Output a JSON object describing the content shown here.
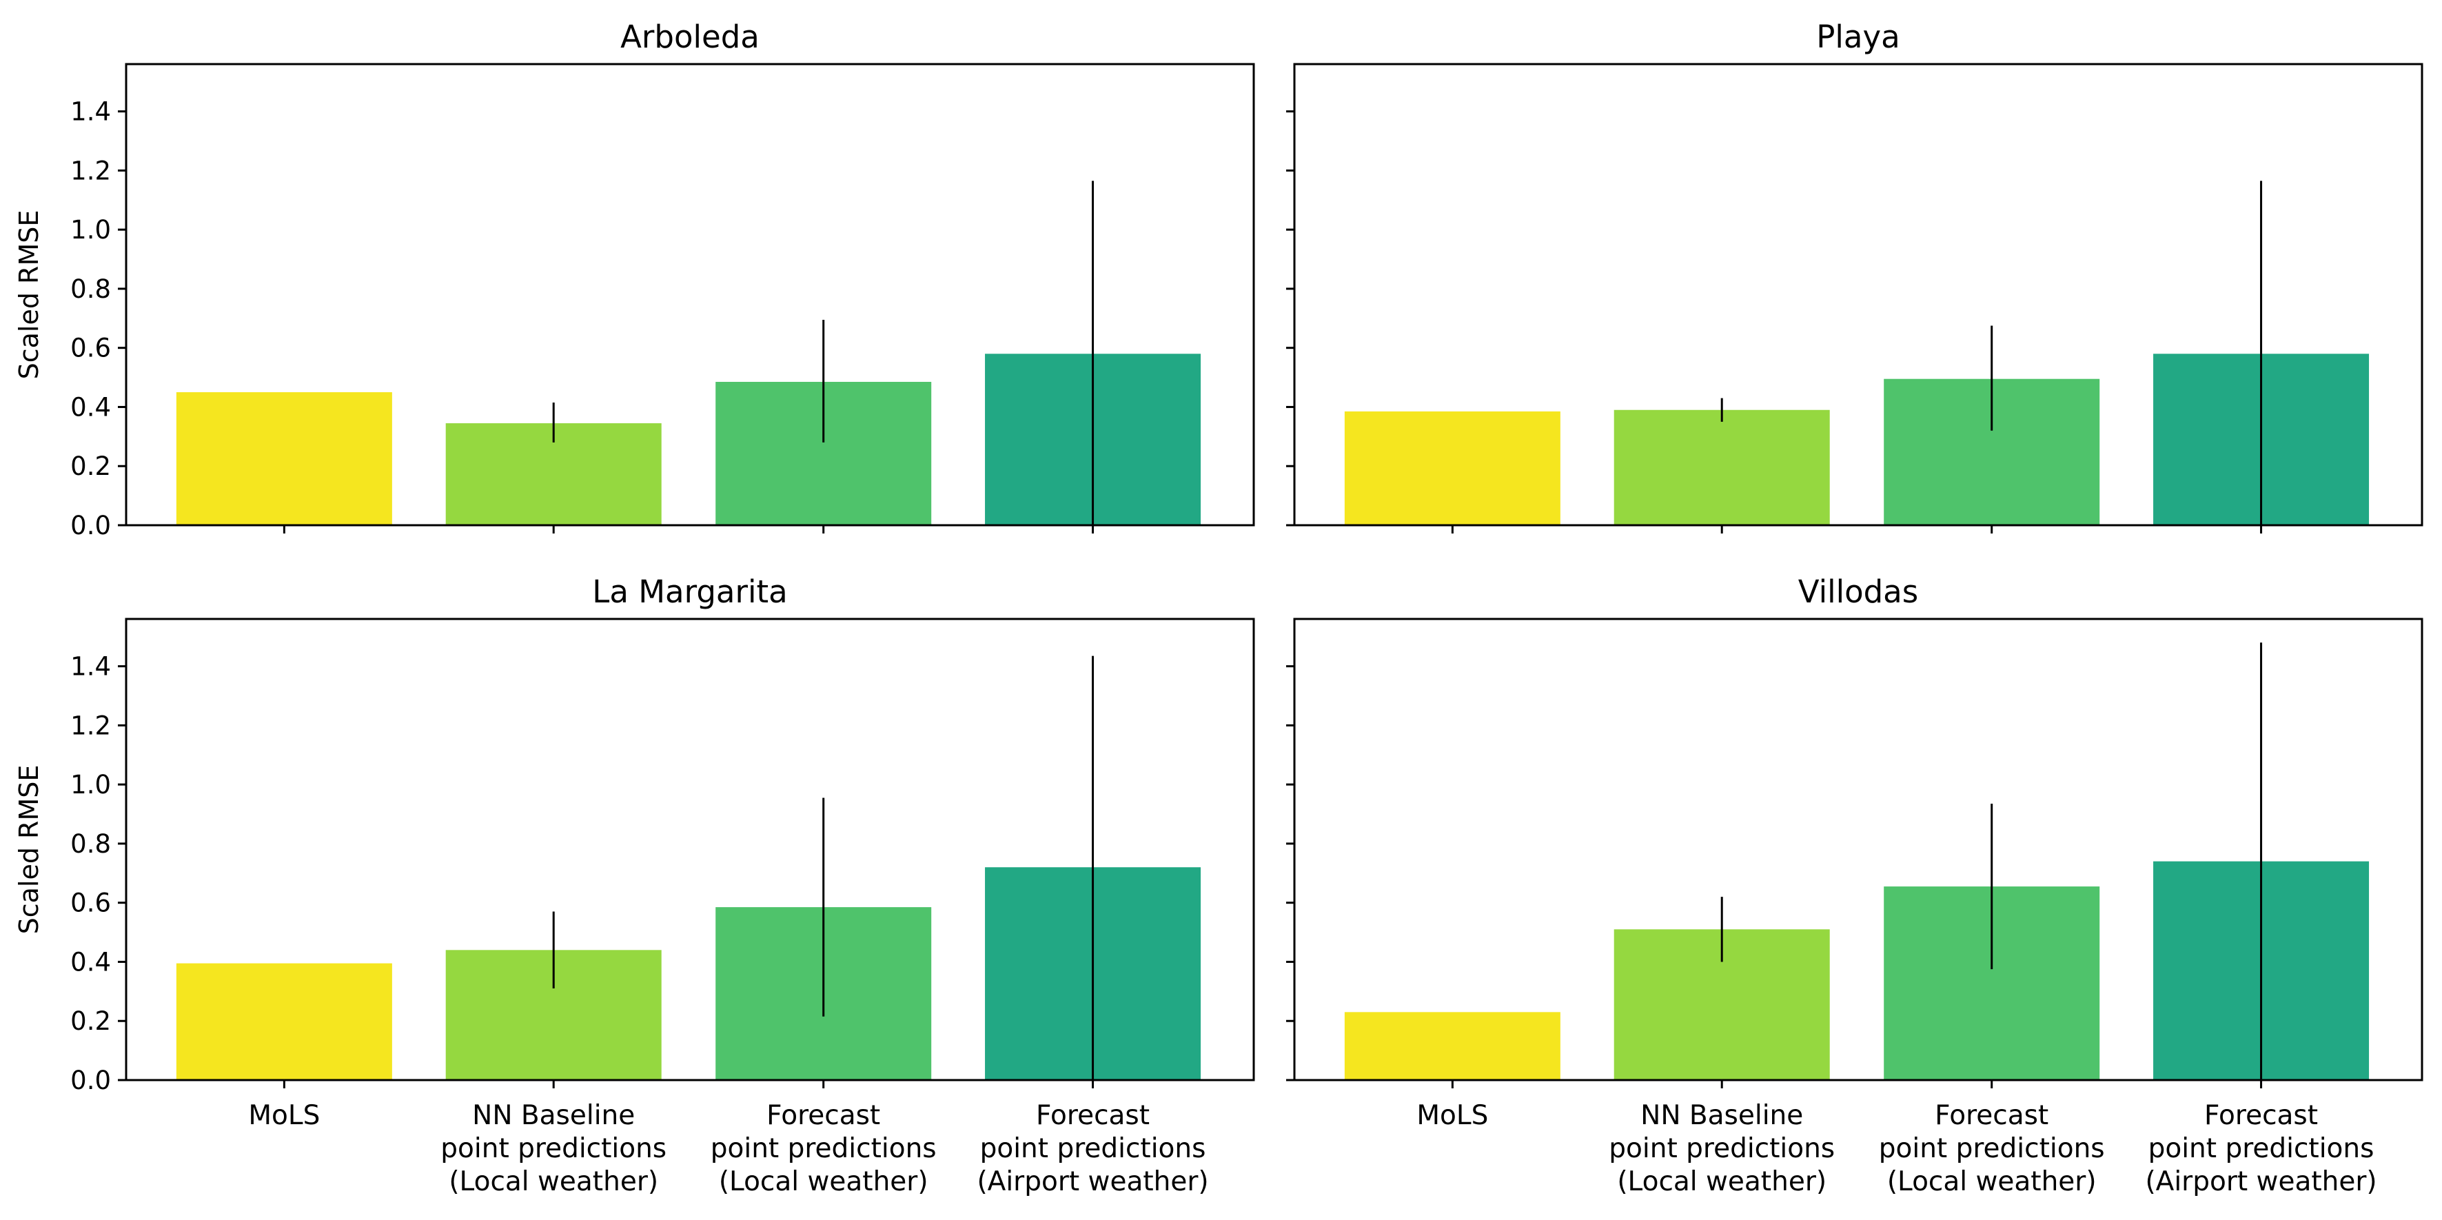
{
  "chart_data": [
    {
      "type": "bar",
      "title": "Arboleda",
      "ylabel": "Scaled RMSE",
      "ylim": [
        0,
        1.56
      ],
      "yticks": [
        "0.0",
        "0.2",
        "0.4",
        "0.6",
        "0.8",
        "1.0",
        "1.2",
        "1.4"
      ],
      "categories": [
        "MoLS",
        "NN Baseline\npoint predictions\n(Local weather)",
        "Forecast\npoint predictions\n(Local weather)",
        "Forecast\npoint predictions\n(Airport weather)"
      ],
      "values": [
        0.45,
        0.345,
        0.485,
        0.58
      ],
      "error_low": [
        null,
        0.28,
        0.28,
        0.0
      ],
      "error_high": [
        null,
        0.415,
        0.695,
        1.165
      ],
      "colors": [
        "#f5e61f",
        "#95d840",
        "#4fc36b",
        "#22a884"
      ],
      "show_xticklabels": false
    },
    {
      "type": "bar",
      "title": "Playa",
      "ylabel": "",
      "ylim": [
        0,
        1.56
      ],
      "yticks": [],
      "categories": [
        "MoLS",
        "NN Baseline\npoint predictions\n(Local weather)",
        "Forecast\npoint predictions\n(Local weather)",
        "Forecast\npoint predictions\n(Airport weather)"
      ],
      "values": [
        0.385,
        0.39,
        0.495,
        0.58
      ],
      "error_low": [
        null,
        0.35,
        0.32,
        0.0
      ],
      "error_high": [
        null,
        0.43,
        0.675,
        1.165
      ],
      "colors": [
        "#f5e61f",
        "#95d840",
        "#4fc36b",
        "#22a884"
      ],
      "show_xticklabels": false
    },
    {
      "type": "bar",
      "title": "La Margarita",
      "ylabel": "Scaled RMSE",
      "ylim": [
        0,
        1.56
      ],
      "yticks": [
        "0.0",
        "0.2",
        "0.4",
        "0.6",
        "0.8",
        "1.0",
        "1.2",
        "1.4"
      ],
      "categories": [
        "MoLS",
        "NN Baseline\npoint predictions\n(Local weather)",
        "Forecast\npoint predictions\n(Local weather)",
        "Forecast\npoint predictions\n(Airport weather)"
      ],
      "values": [
        0.395,
        0.44,
        0.585,
        0.72
      ],
      "error_low": [
        null,
        0.31,
        0.215,
        0.0
      ],
      "error_high": [
        null,
        0.57,
        0.955,
        1.435
      ],
      "colors": [
        "#f5e61f",
        "#95d840",
        "#4fc36b",
        "#22a884"
      ],
      "show_xticklabels": true
    },
    {
      "type": "bar",
      "title": "Villodas",
      "ylabel": "",
      "ylim": [
        0,
        1.56
      ],
      "yticks": [],
      "categories": [
        "MoLS",
        "NN Baseline\npoint predictions\n(Local weather)",
        "Forecast\npoint predictions\n(Local weather)",
        "Forecast\npoint predictions\n(Airport weather)"
      ],
      "values": [
        0.23,
        0.51,
        0.655,
        0.74
      ],
      "error_low": [
        null,
        0.4,
        0.375,
        0.0
      ],
      "error_high": [
        null,
        0.62,
        0.935,
        1.48
      ],
      "colors": [
        "#f5e61f",
        "#95d840",
        "#4fc36b",
        "#22a884"
      ],
      "show_xticklabels": true
    }
  ]
}
